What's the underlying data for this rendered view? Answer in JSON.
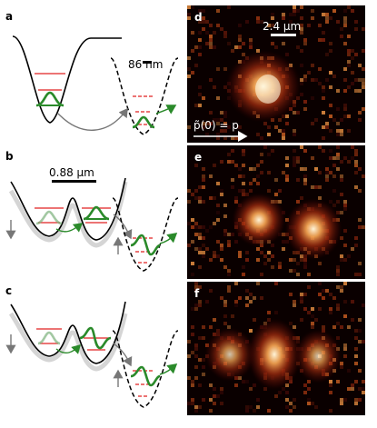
{
  "figure": {
    "panels": {
      "a": {
        "letter": "a",
        "scale_label": "86 nm"
      },
      "b": {
        "letter": "b",
        "scale_label": "0.88 µm"
      },
      "c": {
        "letter": "c"
      },
      "d": {
        "letter": "d",
        "scale_label": "2.4 µm",
        "momentum_label": "p̃(0) = p"
      },
      "e": {
        "letter": "e"
      },
      "f": {
        "letter": "f"
      }
    }
  },
  "colors": {
    "potential": "#000000",
    "energy_level": "#e02020",
    "wavefunction": "#2a8a2a",
    "arrow_gray": "#777777",
    "image_background": "#0a0000"
  }
}
